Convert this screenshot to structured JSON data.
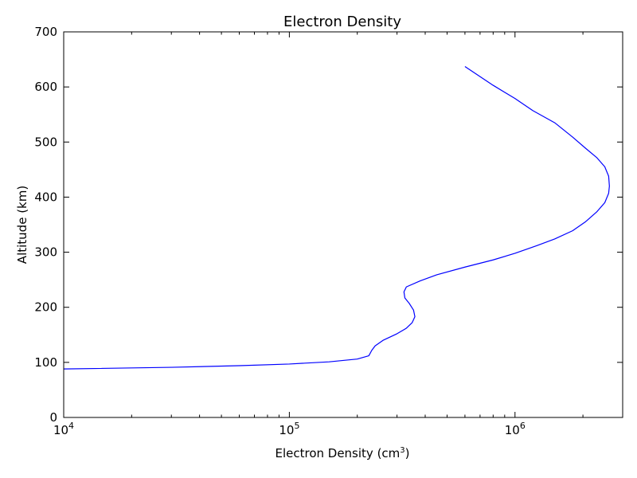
{
  "chart_data": {
    "type": "line",
    "title": "Electron Density",
    "xlabel": "Electron Density (cm",
    "xlabel_sup": "3",
    "xlabel_suffix": ")",
    "ylabel": "Altitude (km)",
    "x_scale": "log",
    "xlim": [
      10000,
      3000000
    ],
    "ylim": [
      0,
      700
    ],
    "grid": false,
    "x_ticks": [
      {
        "value": 10000,
        "base": "10",
        "exp": "4"
      },
      {
        "value": 100000,
        "base": "10",
        "exp": "5"
      },
      {
        "value": 1000000,
        "base": "10",
        "exp": "6"
      }
    ],
    "y_ticks": [
      0,
      100,
      200,
      300,
      400,
      500,
      600,
      700
    ],
    "series": [
      {
        "color": "#0000ff",
        "x": [
          10000,
          30000,
          60000,
          100000,
          150000,
          200000,
          225000,
          232000,
          240000,
          260000,
          300000,
          330000,
          350000,
          360000,
          355000,
          340000,
          325000,
          322000,
          330000,
          380000,
          450000,
          600000,
          800000,
          1000000,
          1250000,
          1500000,
          1800000,
          2050000,
          2300000,
          2500000,
          2600000,
          2620000,
          2600000,
          2500000,
          2300000,
          2050000,
          1800000,
          1500000,
          1200000,
          1000000,
          800000,
          600000
        ],
        "y": [
          88,
          91,
          94,
          97,
          101,
          106,
          112,
          122,
          130,
          140,
          152,
          162,
          172,
          183,
          195,
          207,
          217,
          228,
          237,
          248,
          259,
          273,
          286,
          298,
          312,
          324,
          339,
          355,
          373,
          390,
          407,
          420,
          438,
          455,
          472,
          489,
          509,
          535,
          557,
          579,
          603,
          637
        ]
      }
    ]
  }
}
